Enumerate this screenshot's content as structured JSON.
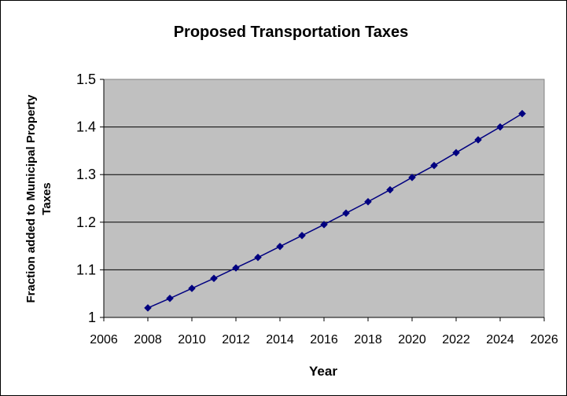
{
  "chart_data": {
    "type": "line",
    "title": "Proposed Transportation Taxes",
    "xlabel": "Year",
    "ylabel_lines": [
      "Fraction added to Municipal Property",
      "Taxes"
    ],
    "xlim": [
      2006,
      2026
    ],
    "ylim": [
      1,
      1.5
    ],
    "x_ticks": [
      2006,
      2008,
      2010,
      2012,
      2014,
      2016,
      2018,
      2020,
      2022,
      2024,
      2026
    ],
    "y_ticks": [
      1,
      1.1,
      1.2,
      1.3,
      1.4,
      1.5
    ],
    "y_tick_labels": [
      "1",
      "1.1",
      "1.2",
      "1.3",
      "1.4",
      "1.5"
    ],
    "grid": "horizontal",
    "legend": "none",
    "series": [
      {
        "x": [
          2008,
          2009,
          2010,
          2011,
          2012,
          2013,
          2014,
          2015,
          2016,
          2017,
          2018,
          2019,
          2020,
          2021,
          2022,
          2023,
          2024,
          2025
        ],
        "values": [
          1.02,
          1.04,
          1.061,
          1.082,
          1.104,
          1.126,
          1.149,
          1.172,
          1.195,
          1.219,
          1.243,
          1.268,
          1.294,
          1.319,
          1.346,
          1.373,
          1.4,
          1.428
        ],
        "color": "#000080",
        "marker": "diamond"
      }
    ],
    "colors": {
      "plot_background": "#c0c0c0",
      "gridline": "#000000",
      "border": "#000000",
      "line": "#000080"
    }
  }
}
